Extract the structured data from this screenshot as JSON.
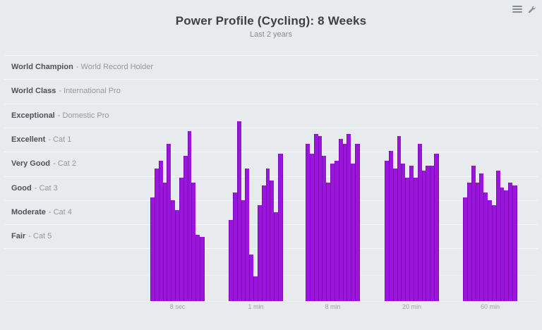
{
  "header": {
    "title": "Power Profile (Cycling): 8 Weeks",
    "subtitle": "Last 2 years",
    "icons": [
      {
        "name": "menu-icon",
        "glyph": "hamburger-lines"
      },
      {
        "name": "settings-wrench-icon",
        "glyph": "wrench"
      }
    ]
  },
  "colors": {
    "background": "#e8ebee",
    "gridline": "#f4f7f9",
    "bar_fill": "#9a16dd",
    "bar_edge": "#7b0cb5",
    "title_text": "#3b4045",
    "row_level_text": "#4d5258",
    "row_detail_text": "#92989e",
    "axis_text": "#9aa1a7",
    "icon_gray": "#868d94"
  },
  "rows": [
    {
      "level": "World Champion",
      "detail": "- World Record Holder"
    },
    {
      "level": "World Class",
      "detail": "- International Pro"
    },
    {
      "level": "Exceptional",
      "detail": "- Domestic Pro"
    },
    {
      "level": "Excellent",
      "detail": "- Cat 1"
    },
    {
      "level": "Very Good",
      "detail": "- Cat 2"
    },
    {
      "level": "Good",
      "detail": "- Cat 3"
    },
    {
      "level": "Moderate",
      "detail": "- Cat 4"
    },
    {
      "level": "Fair",
      "detail": "- Cat 5"
    }
  ],
  "chart_data": {
    "type": "bar",
    "title": "Power Profile (Cycling): 8 Weeks",
    "subtitle": "Last 2 years",
    "xlabel": "",
    "ylabel": "",
    "grid": "horizontal band lines, white on gray",
    "legend": "none",
    "y_bands_top_to_bottom": [
      "World Champion - World Record Holder",
      "World Class - International Pro",
      "Exceptional - Domestic Pro",
      "Excellent - Cat 1",
      "Very Good - Cat 2",
      "Good - Cat 3",
      "Moderate - Cat 4",
      "Fair - Cat 5"
    ],
    "categories": [
      "8 sec",
      "1 min",
      "8 min",
      "20 min",
      "60 min"
    ],
    "bars_per_group": 13,
    "value_note": "heights normalized 0-1 of full plot height (baseline to World Champion band top)",
    "groups": [
      {
        "label": "8 sec",
        "heights": [
          0.42,
          0.54,
          0.57,
          0.48,
          0.64,
          0.41,
          0.37,
          0.5,
          0.59,
          0.69,
          0.48,
          0.27,
          0.26
        ]
      },
      {
        "label": "1 min",
        "heights": [
          0.33,
          0.44,
          0.73,
          0.41,
          0.54,
          0.19,
          0.1,
          0.39,
          0.47,
          0.54,
          0.49,
          0.36,
          0.6
        ]
      },
      {
        "label": "8 min",
        "heights": [
          0.64,
          0.6,
          0.68,
          0.67,
          0.59,
          0.48,
          0.56,
          0.57,
          0.66,
          0.64,
          0.68,
          0.56,
          0.64
        ]
      },
      {
        "label": "20 min",
        "heights": [
          0.57,
          0.61,
          0.54,
          0.67,
          0.56,
          0.5,
          0.55,
          0.5,
          0.64,
          0.53,
          0.55,
          0.55,
          0.6
        ]
      },
      {
        "label": "60 min",
        "heights": [
          0.42,
          0.48,
          0.55,
          0.48,
          0.52,
          0.44,
          0.41,
          0.39,
          0.53,
          0.46,
          0.45,
          0.48,
          0.47
        ]
      }
    ],
    "bar_color": "#9a16dd"
  }
}
